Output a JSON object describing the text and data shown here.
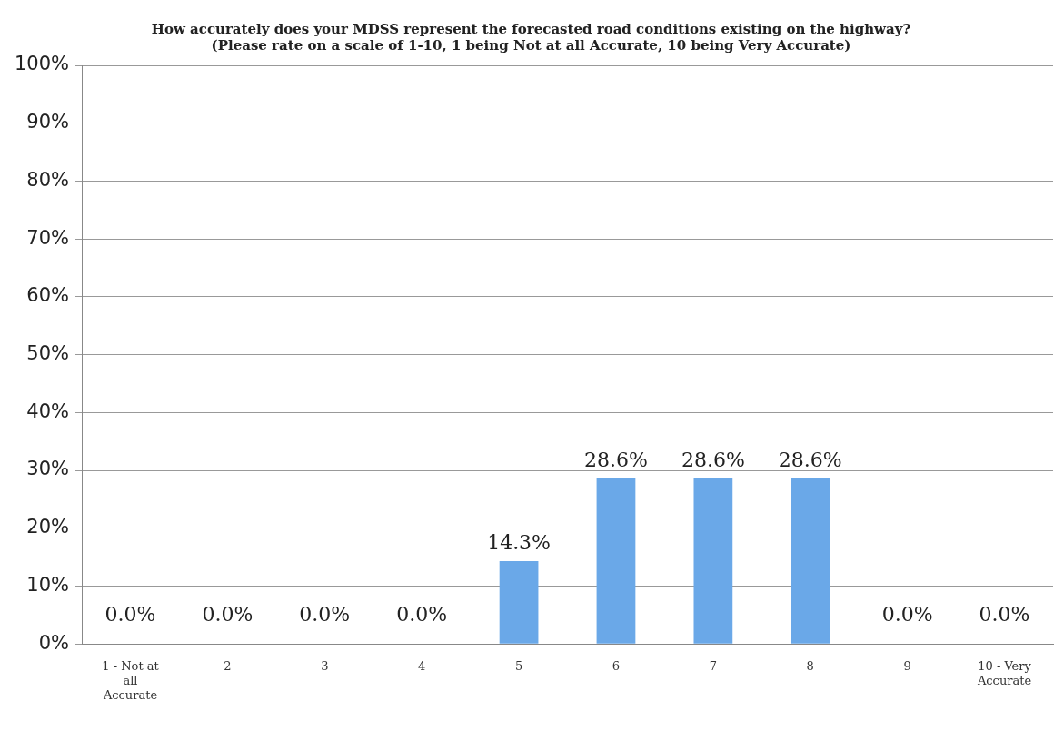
{
  "chart_data": {
    "type": "bar",
    "title": "How accurately does your MDSS represent the forecasted road conditions existing on the highway? (Please rate on a scale of 1-10, 1 being Not at all Accurate, 10 being Very Accurate)",
    "categories": [
      "1 - Not at all Accurate",
      "2",
      "3",
      "4",
      "5",
      "6",
      "7",
      "8",
      "9",
      "10 - Very Accurate"
    ],
    "values": [
      0,
      0,
      0,
      0,
      14.3,
      28.6,
      28.6,
      28.6,
      0,
      0
    ],
    "value_labels": [
      "0.0%",
      "0.0%",
      "0.0%",
      "0.0%",
      "14.3%",
      "28.6%",
      "28.6%",
      "28.6%",
      "0.0%",
      "0.0%"
    ],
    "color": "#6aa8e8",
    "ylim": [
      0,
      100
    ],
    "yticks": [
      {
        "value": 0,
        "label": "0%"
      },
      {
        "value": 10,
        "label": "10%"
      },
      {
        "value": 20,
        "label": "20%"
      },
      {
        "value": 30,
        "label": "30%"
      },
      {
        "value": 40,
        "label": "40%"
      },
      {
        "value": 50,
        "label": "50%"
      },
      {
        "value": 60,
        "label": "60%"
      },
      {
        "value": 70,
        "label": "70%"
      },
      {
        "value": 80,
        "label": "80%"
      },
      {
        "value": 90,
        "label": "90%"
      },
      {
        "value": 100,
        "label": "100%"
      }
    ],
    "grid": "y",
    "legend": false
  }
}
